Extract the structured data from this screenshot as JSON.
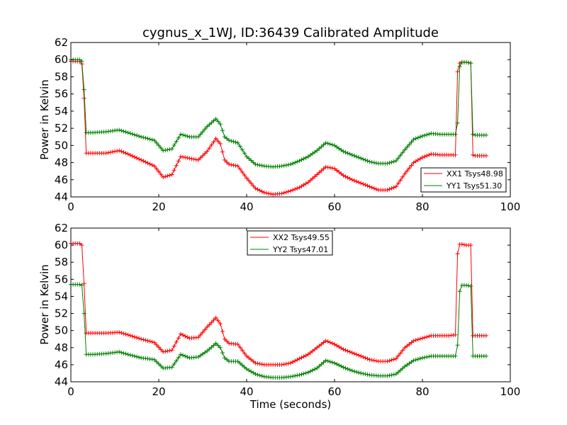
{
  "chart_data": [
    {
      "type": "line",
      "title": "cygnus_x_1WJ, ID:36439 Calibrated Amplitude",
      "xlabel": "",
      "ylabel": "Power in Kelvin",
      "xlim": [
        0,
        100
      ],
      "ylim": [
        44,
        62
      ],
      "xticks": [
        0,
        20,
        40,
        60,
        80,
        100
      ],
      "yticks": [
        44,
        46,
        48,
        50,
        52,
        54,
        56,
        58,
        60,
        62
      ],
      "grid": false,
      "legend_position": "lower-right",
      "series": [
        {
          "name": "XX1 Tsys48.98",
          "color": "#ff0000",
          "x": [
            0,
            2,
            2.5,
            3,
            3.5,
            5,
            8,
            11,
            13,
            16,
            19,
            21,
            23,
            25,
            27,
            29,
            31,
            33,
            34,
            35,
            36,
            38,
            40,
            42,
            44,
            46,
            48,
            50,
            52,
            54,
            56,
            58,
            60,
            62,
            64,
            66,
            68,
            70,
            72,
            74,
            76,
            78,
            80,
            82,
            84,
            86,
            87.5,
            88,
            88.5,
            89,
            90,
            91,
            91.5,
            92,
            94.5
          ],
          "y": [
            59.8,
            59.8,
            59.5,
            55.5,
            49.1,
            49.1,
            49.1,
            49.4,
            49.0,
            48.3,
            47.6,
            46.3,
            46.6,
            48.7,
            48.5,
            48.3,
            49.3,
            50.8,
            50.2,
            48.3,
            47.8,
            47.6,
            46.2,
            45.0,
            44.5,
            44.3,
            44.4,
            44.7,
            45.1,
            45.7,
            46.6,
            47.5,
            47.3,
            46.5,
            46.0,
            45.6,
            45.2,
            44.8,
            44.8,
            45.2,
            46.7,
            48.0,
            48.6,
            49.0,
            48.9,
            48.9,
            48.9,
            58.6,
            59.6,
            59.7,
            59.7,
            59.6,
            48.9,
            48.8,
            48.8
          ]
        },
        {
          "name": "YY1 Tsys51.30",
          "color": "#008000",
          "x": [
            0,
            2,
            2.5,
            3,
            3.5,
            5,
            8,
            11,
            13,
            16,
            19,
            21,
            23,
            25,
            27,
            29,
            31,
            33,
            34,
            35,
            36,
            38,
            40,
            42,
            44,
            46,
            48,
            50,
            52,
            54,
            56,
            58,
            60,
            62,
            64,
            66,
            68,
            70,
            72,
            74,
            76,
            78,
            80,
            82,
            84,
            86,
            87.5,
            88,
            88.5,
            89,
            90,
            91,
            91.5,
            92,
            94.5
          ],
          "y": [
            60.0,
            60.0,
            59.8,
            56.5,
            51.5,
            51.5,
            51.6,
            51.8,
            51.5,
            51.0,
            50.6,
            49.4,
            49.6,
            51.3,
            51.0,
            51.0,
            52.2,
            53.1,
            52.5,
            51.0,
            50.6,
            50.3,
            48.7,
            47.8,
            47.6,
            47.5,
            47.6,
            47.8,
            48.2,
            48.7,
            49.4,
            50.3,
            50.0,
            49.3,
            48.9,
            48.5,
            48.1,
            47.9,
            47.9,
            48.2,
            49.5,
            50.7,
            51.1,
            51.4,
            51.3,
            51.3,
            51.3,
            52.6,
            59.2,
            59.7,
            59.7,
            59.6,
            51.3,
            51.2,
            51.2
          ]
        }
      ]
    },
    {
      "type": "line",
      "title": "",
      "xlabel": "Time (seconds)",
      "ylabel": "Power in Kelvin",
      "xlim": [
        0,
        100
      ],
      "ylim": [
        44,
        62
      ],
      "xticks": [
        0,
        20,
        40,
        60,
        80,
        100
      ],
      "yticks": [
        44,
        46,
        48,
        50,
        52,
        54,
        56,
        58,
        60,
        62
      ],
      "grid": false,
      "legend_position": "upper-center",
      "series": [
        {
          "name": "XX2 Tsys49.55",
          "color": "#ff0000",
          "x": [
            0,
            2,
            2.5,
            3,
            3.5,
            5,
            8,
            11,
            13,
            16,
            19,
            21,
            23,
            25,
            27,
            29,
            31,
            33,
            34,
            35,
            36,
            38,
            40,
            42,
            44,
            46,
            48,
            50,
            52,
            54,
            56,
            58,
            60,
            62,
            64,
            66,
            68,
            70,
            72,
            74,
            76,
            78,
            80,
            82,
            84,
            86,
            87.5,
            88,
            88.5,
            89,
            90,
            91,
            91.5,
            92,
            94.5
          ],
          "y": [
            60.2,
            60.2,
            60.0,
            55.5,
            49.7,
            49.7,
            49.7,
            49.8,
            49.5,
            49.0,
            48.6,
            47.5,
            47.7,
            49.6,
            49.1,
            49.2,
            50.4,
            51.5,
            50.8,
            49.0,
            48.5,
            48.4,
            47.0,
            46.2,
            46.0,
            46.0,
            46.0,
            46.2,
            46.7,
            47.2,
            48.0,
            48.8,
            48.4,
            47.8,
            47.4,
            47.0,
            46.6,
            46.4,
            46.4,
            46.7,
            48.0,
            48.8,
            49.1,
            49.4,
            49.4,
            49.4,
            49.5,
            59.0,
            60.1,
            60.1,
            60.0,
            60.0,
            49.4,
            49.4,
            49.4
          ]
        },
        {
          "name": "YY2 Tsys47.01",
          "color": "#008000",
          "x": [
            0,
            2,
            2.5,
            3,
            3.5,
            5,
            8,
            11,
            13,
            16,
            19,
            21,
            23,
            25,
            27,
            29,
            31,
            33,
            34,
            35,
            36,
            38,
            40,
            42,
            44,
            46,
            48,
            50,
            52,
            54,
            56,
            58,
            60,
            62,
            64,
            66,
            68,
            70,
            72,
            74,
            76,
            78,
            80,
            82,
            84,
            86,
            87.5,
            88,
            88.5,
            89,
            90,
            91,
            91.5,
            92,
            94.5
          ],
          "y": [
            55.4,
            55.4,
            55.3,
            52.0,
            47.2,
            47.2,
            47.3,
            47.5,
            47.2,
            46.8,
            46.6,
            45.6,
            45.7,
            47.2,
            46.8,
            46.9,
            47.6,
            48.5,
            48.0,
            46.8,
            46.4,
            46.4,
            45.5,
            44.9,
            44.6,
            44.5,
            44.5,
            44.6,
            44.8,
            45.1,
            45.6,
            46.5,
            46.2,
            45.7,
            45.3,
            45.0,
            44.8,
            44.7,
            44.7,
            44.9,
            45.8,
            46.5,
            46.8,
            47.0,
            47.0,
            47.0,
            47.0,
            48.3,
            54.6,
            55.3,
            55.3,
            55.2,
            47.0,
            47.0,
            47.0
          ]
        }
      ]
    }
  ]
}
